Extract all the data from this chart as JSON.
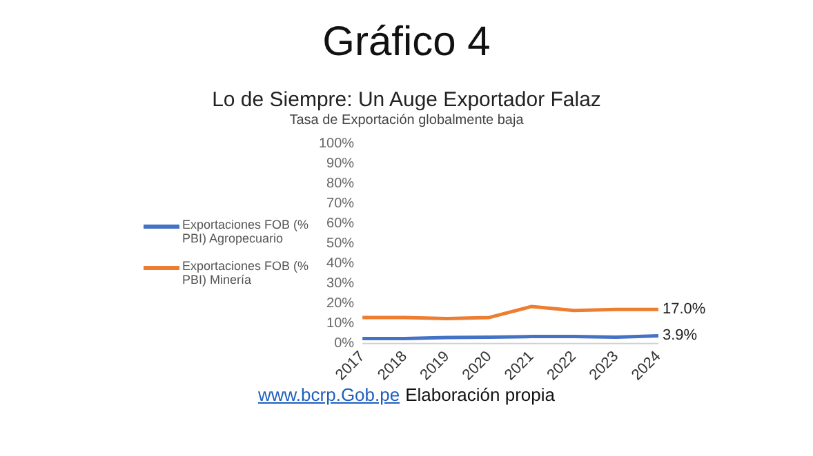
{
  "chart_data": {
    "type": "line",
    "title": "Lo de Siempre: Un Auge Exportador Falaz",
    "subtitle": "Tasa de Exportación globalmente baja",
    "annotations": [
      "Gráfico 4",
      "www.bcrp.Gob.pe",
      "Elaboración propia"
    ],
    "categories": [
      "2017",
      "2018",
      "2019",
      "2020",
      "2021",
      "2022",
      "2023",
      "2024"
    ],
    "series": [
      {
        "name": "Exportaciones FOB (% PBI) Agropecuario",
        "color": "#4472c4",
        "values": [
          2.5,
          2.5,
          3,
          3.2,
          3.5,
          3.5,
          3.2,
          3.9
        ],
        "value_labels": [
          null,
          null,
          null,
          null,
          null,
          null,
          null,
          "3.9%"
        ]
      },
      {
        "name": "Exportaciones FOB (% PBI) Minería",
        "color": "#ed7d31",
        "values": [
          13,
          13,
          12.5,
          13,
          18.5,
          16.5,
          17,
          17
        ],
        "value_labels": [
          null,
          null,
          null,
          null,
          null,
          null,
          null,
          "17.0%"
        ]
      }
    ],
    "ylim": [
      0,
      100
    ],
    "yticks": [
      {
        "value": 0,
        "label": "0%"
      },
      {
        "value": 10,
        "label": "10%"
      },
      {
        "value": 20,
        "label": "20%"
      },
      {
        "value": 30,
        "label": "30%"
      },
      {
        "value": 40,
        "label": "40%"
      },
      {
        "value": 50,
        "label": "50%"
      },
      {
        "value": 60,
        "label": "60%"
      },
      {
        "value": 70,
        "label": "70%"
      },
      {
        "value": 80,
        "label": "80%"
      },
      {
        "value": 90,
        "label": "90%"
      },
      {
        "value": 100,
        "label": "100%"
      }
    ],
    "grid": false,
    "legend": "left",
    "marker": "none",
    "line_style": "solid"
  }
}
